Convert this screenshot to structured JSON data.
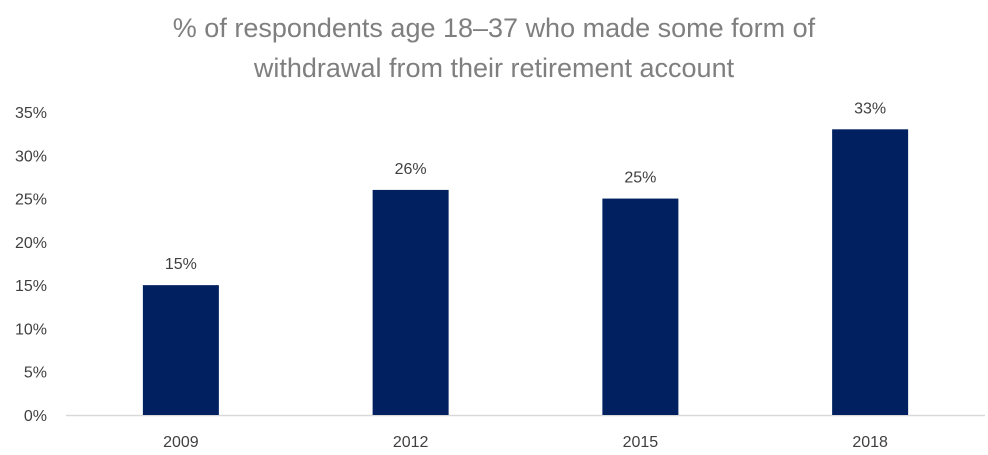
{
  "chart_data": {
    "type": "bar",
    "title_lines": [
      "% of respondents age 18–37 who made some form of",
      "withdrawal from their retirement account"
    ],
    "categories": [
      "2009",
      "2012",
      "2015",
      "2018"
    ],
    "values": [
      15,
      26,
      25,
      33
    ],
    "data_labels": [
      "15%",
      "26%",
      "25%",
      "33%"
    ],
    "y_ticks": [
      "0%",
      "5%",
      "10%",
      "15%",
      "20%",
      "25%",
      "30%",
      "35%"
    ],
    "ylim": [
      0,
      35
    ],
    "grid": false,
    "legend": "none",
    "bar_color": "#002060",
    "axis_color": "#d9d9d9"
  }
}
